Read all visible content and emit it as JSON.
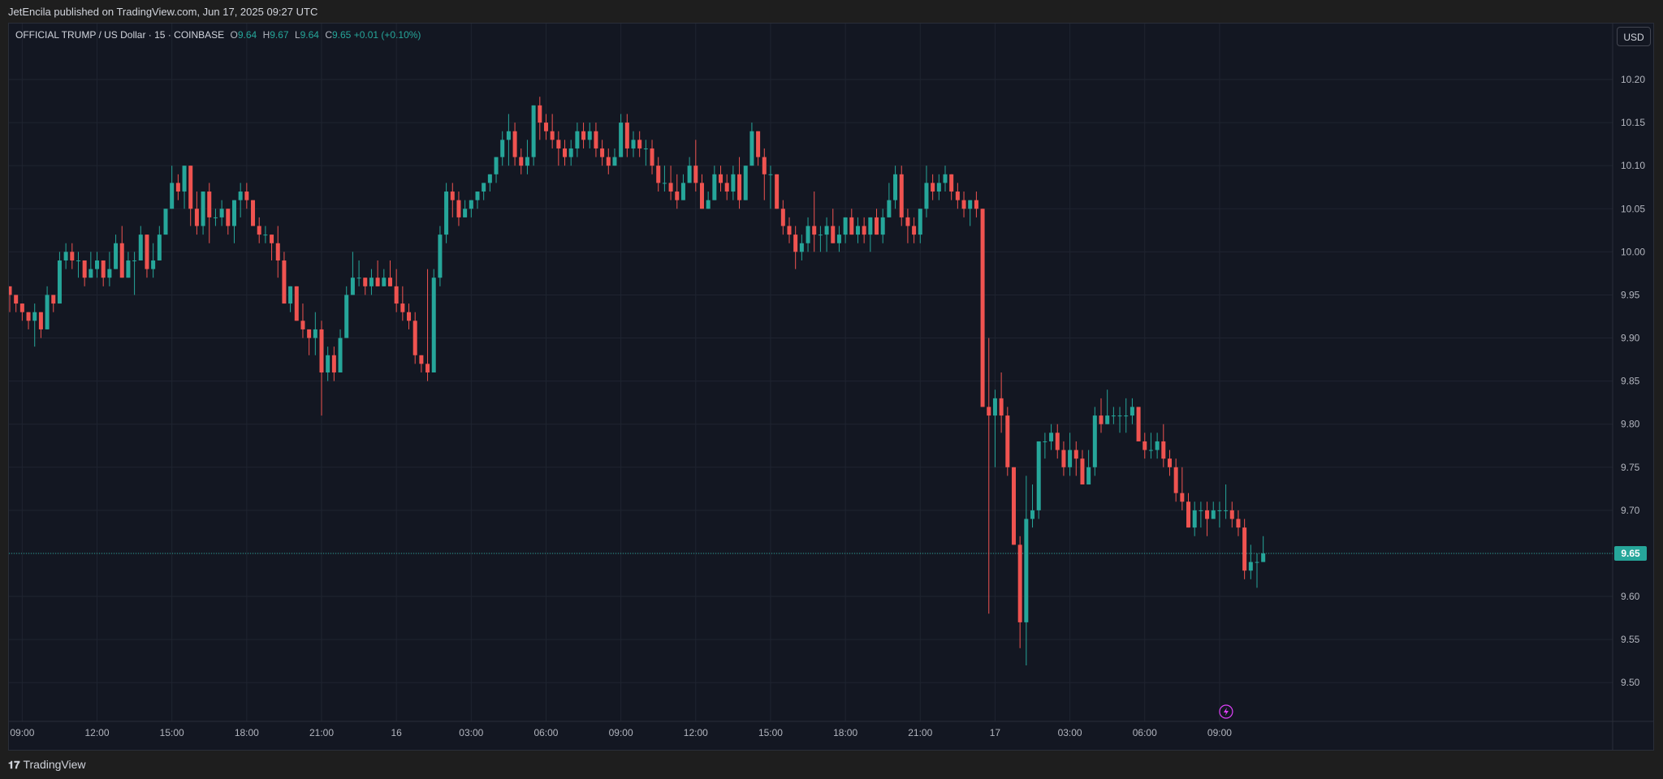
{
  "header": {
    "published_text": "JetEncila published on TradingView.com, Jun 17, 2025 09:27 UTC"
  },
  "legend": {
    "symbol": "OFFICIAL TRUMP / US Dollar · 15 · COINBASE",
    "o_label": "O",
    "o_value": "9.64",
    "h_label": "H",
    "h_value": "9.67",
    "l_label": "L",
    "l_value": "9.64",
    "c_label": "C",
    "c_value": "9.65",
    "change": "+0.01 (+0.10%)"
  },
  "currency_button": "USD",
  "footer": {
    "brand": "TradingView",
    "brand_icon": "tradingview-logo-icon"
  },
  "colors": {
    "up": "#26a69a",
    "down": "#ef5350",
    "background": "#131722",
    "grid": "#1f2430",
    "text": "#b2b5be",
    "last_price_line": "#26a69a",
    "lightning": "#e040fb"
  },
  "chart_data": {
    "type": "candlestick",
    "title": "OFFICIAL TRUMP / US Dollar · 15 · COINBASE",
    "ylim": [
      9.455,
      10.265
    ],
    "y_ticks": [
      9.5,
      9.55,
      9.6,
      9.65,
      9.7,
      9.75,
      9.8,
      9.85,
      9.9,
      9.95,
      10.0,
      10.05,
      10.1,
      10.15,
      10.2
    ],
    "y_tick_labels": [
      "9.50",
      "9.55",
      "9.60",
      "9.65",
      "9.70",
      "9.75",
      "9.80",
      "9.85",
      "9.90",
      "9.95",
      "10.00",
      "10.05",
      "10.10",
      "10.15",
      "10.20"
    ],
    "x_ticks": [
      {
        "index": 2,
        "label": "09:00"
      },
      {
        "index": 14,
        "label": "12:00"
      },
      {
        "index": 26,
        "label": "15:00"
      },
      {
        "index": 38,
        "label": "18:00"
      },
      {
        "index": 50,
        "label": "21:00"
      },
      {
        "index": 62,
        "label": "16"
      },
      {
        "index": 74,
        "label": "03:00"
      },
      {
        "index": 86,
        "label": "06:00"
      },
      {
        "index": 98,
        "label": "09:00"
      },
      {
        "index": 110,
        "label": "12:00"
      },
      {
        "index": 122,
        "label": "15:00"
      },
      {
        "index": 134,
        "label": "18:00"
      },
      {
        "index": 146,
        "label": "21:00"
      },
      {
        "index": 158,
        "label": "17"
      },
      {
        "index": 170,
        "label": "03:00"
      },
      {
        "index": 182,
        "label": "06:00"
      },
      {
        "index": 194,
        "label": "09:00"
      }
    ],
    "grid": true,
    "last_price": 9.65,
    "last_price_label": "9.65",
    "candles": [
      [
        9.96,
        9.96,
        9.93,
        9.95
      ],
      [
        9.95,
        9.95,
        9.93,
        9.94
      ],
      [
        9.94,
        9.94,
        9.92,
        9.93
      ],
      [
        9.93,
        9.93,
        9.91,
        9.92
      ],
      [
        9.92,
        9.94,
        9.89,
        9.93
      ],
      [
        9.93,
        9.93,
        9.9,
        9.91
      ],
      [
        9.91,
        9.96,
        9.91,
        9.95
      ],
      [
        9.95,
        9.95,
        9.93,
        9.94
      ],
      [
        9.94,
        10.0,
        9.94,
        9.99
      ],
      [
        9.99,
        10.01,
        9.98,
        10.0
      ],
      [
        10.0,
        10.01,
        9.98,
        9.99
      ],
      [
        9.99,
        10.0,
        9.97,
        9.99
      ],
      [
        9.99,
        9.99,
        9.96,
        9.97
      ],
      [
        9.97,
        10.0,
        9.97,
        9.98
      ],
      [
        9.98,
        10.0,
        9.97,
        9.99
      ],
      [
        9.99,
        9.99,
        9.96,
        9.97
      ],
      [
        9.97,
        10.0,
        9.96,
        9.98
      ],
      [
        9.98,
        10.02,
        9.98,
        10.01
      ],
      [
        10.01,
        10.03,
        9.97,
        9.97
      ],
      [
        9.97,
        10.0,
        9.97,
        9.99
      ],
      [
        9.99,
        10.0,
        9.95,
        9.99
      ],
      [
        9.99,
        10.03,
        9.99,
        10.02
      ],
      [
        10.02,
        10.02,
        9.97,
        9.98
      ],
      [
        9.98,
        10.01,
        9.97,
        9.99
      ],
      [
        9.99,
        10.03,
        9.99,
        10.02
      ],
      [
        10.02,
        10.05,
        10.02,
        10.05
      ],
      [
        10.05,
        10.1,
        10.05,
        10.08
      ],
      [
        10.08,
        10.09,
        10.06,
        10.07
      ],
      [
        10.07,
        10.1,
        10.05,
        10.1
      ],
      [
        10.1,
        10.1,
        10.03,
        10.05
      ],
      [
        10.05,
        10.07,
        10.02,
        10.03
      ],
      [
        10.03,
        10.07,
        10.02,
        10.07
      ],
      [
        10.07,
        10.08,
        10.01,
        10.04
      ],
      [
        10.04,
        10.05,
        10.03,
        10.04
      ],
      [
        10.04,
        10.06,
        10.03,
        10.05
      ],
      [
        10.05,
        10.05,
        10.02,
        10.03
      ],
      [
        10.03,
        10.06,
        10.01,
        10.06
      ],
      [
        10.06,
        10.08,
        10.04,
        10.07
      ],
      [
        10.07,
        10.08,
        10.05,
        10.06
      ],
      [
        10.06,
        10.06,
        10.03,
        10.03
      ],
      [
        10.03,
        10.04,
        10.01,
        10.02
      ],
      [
        10.02,
        10.03,
        10.01,
        10.02
      ],
      [
        10.02,
        10.02,
        9.99,
        10.01
      ],
      [
        10.01,
        10.03,
        9.97,
        9.99
      ],
      [
        9.99,
        10.0,
        9.94,
        9.94
      ],
      [
        9.94,
        9.96,
        9.93,
        9.96
      ],
      [
        9.96,
        9.96,
        9.92,
        9.92
      ],
      [
        9.92,
        9.94,
        9.9,
        9.91
      ],
      [
        9.91,
        9.91,
        9.88,
        9.9
      ],
      [
        9.9,
        9.93,
        9.88,
        9.91
      ],
      [
        9.91,
        9.92,
        9.81,
        9.86
      ],
      [
        9.86,
        9.89,
        9.85,
        9.88
      ],
      [
        9.88,
        9.89,
        9.85,
        9.86
      ],
      [
        9.86,
        9.91,
        9.86,
        9.9
      ],
      [
        9.9,
        9.96,
        9.9,
        9.95
      ],
      [
        9.95,
        10.0,
        9.95,
        9.97
      ],
      [
        9.97,
        9.99,
        9.96,
        9.97
      ],
      [
        9.97,
        9.97,
        9.95,
        9.96
      ],
      [
        9.96,
        9.98,
        9.95,
        9.97
      ],
      [
        9.97,
        9.99,
        9.96,
        9.96
      ],
      [
        9.96,
        9.98,
        9.96,
        9.97
      ],
      [
        9.97,
        9.99,
        9.96,
        9.96
      ],
      [
        9.96,
        9.98,
        9.93,
        9.94
      ],
      [
        9.94,
        9.96,
        9.92,
        9.93
      ],
      [
        9.93,
        9.94,
        9.91,
        9.92
      ],
      [
        9.92,
        9.93,
        9.87,
        9.88
      ],
      [
        9.88,
        9.88,
        9.86,
        9.87
      ],
      [
        9.87,
        9.98,
        9.85,
        9.86
      ],
      [
        9.86,
        9.98,
        9.86,
        9.97
      ],
      [
        9.97,
        10.03,
        9.96,
        10.02
      ],
      [
        10.02,
        10.08,
        10.01,
        10.07
      ],
      [
        10.07,
        10.08,
        10.04,
        10.06
      ],
      [
        10.06,
        10.07,
        10.03,
        10.04
      ],
      [
        10.04,
        10.06,
        10.04,
        10.05
      ],
      [
        10.05,
        10.06,
        10.04,
        10.06
      ],
      [
        10.06,
        10.07,
        10.05,
        10.07
      ],
      [
        10.07,
        10.08,
        10.06,
        10.08
      ],
      [
        10.08,
        10.09,
        10.07,
        10.09
      ],
      [
        10.09,
        10.11,
        10.08,
        10.11
      ],
      [
        10.11,
        10.14,
        10.1,
        10.13
      ],
      [
        10.13,
        10.16,
        10.1,
        10.14
      ],
      [
        10.14,
        10.15,
        10.1,
        10.11
      ],
      [
        10.11,
        10.12,
        10.09,
        10.1
      ],
      [
        10.1,
        10.13,
        10.09,
        10.11
      ],
      [
        10.11,
        10.17,
        10.1,
        10.17
      ],
      [
        10.17,
        10.18,
        10.13,
        10.15
      ],
      [
        10.15,
        10.16,
        10.13,
        10.14
      ],
      [
        10.14,
        10.16,
        10.12,
        10.13
      ],
      [
        10.13,
        10.14,
        10.1,
        10.12
      ],
      [
        10.12,
        10.13,
        10.1,
        10.11
      ],
      [
        10.11,
        10.13,
        10.1,
        10.12
      ],
      [
        10.12,
        10.15,
        10.11,
        10.14
      ],
      [
        10.14,
        10.15,
        10.12,
        10.13
      ],
      [
        10.13,
        10.15,
        10.12,
        10.14
      ],
      [
        10.14,
        10.15,
        10.11,
        10.12
      ],
      [
        10.12,
        10.13,
        10.1,
        10.11
      ],
      [
        10.11,
        10.12,
        10.09,
        10.1
      ],
      [
        10.1,
        10.12,
        10.1,
        10.11
      ],
      [
        10.11,
        10.16,
        10.11,
        10.15
      ],
      [
        10.15,
        10.16,
        10.11,
        10.12
      ],
      [
        10.12,
        10.14,
        10.11,
        10.13
      ],
      [
        10.13,
        10.14,
        10.11,
        10.12
      ],
      [
        10.12,
        10.13,
        10.1,
        10.12
      ],
      [
        10.12,
        10.13,
        10.09,
        10.1
      ],
      [
        10.1,
        10.11,
        10.07,
        10.08
      ],
      [
        10.08,
        10.1,
        10.07,
        10.08
      ],
      [
        10.08,
        10.1,
        10.06,
        10.07
      ],
      [
        10.07,
        10.09,
        10.05,
        10.06
      ],
      [
        10.06,
        10.09,
        10.06,
        10.08
      ],
      [
        10.08,
        10.11,
        10.08,
        10.1
      ],
      [
        10.1,
        10.13,
        10.07,
        10.08
      ],
      [
        10.08,
        10.09,
        10.05,
        10.05
      ],
      [
        10.05,
        10.07,
        10.05,
        10.06
      ],
      [
        10.06,
        10.1,
        10.06,
        10.09
      ],
      [
        10.09,
        10.1,
        10.07,
        10.08
      ],
      [
        10.08,
        10.09,
        10.06,
        10.07
      ],
      [
        10.07,
        10.1,
        10.06,
        10.09
      ],
      [
        10.09,
        10.11,
        10.05,
        10.06
      ],
      [
        10.06,
        10.1,
        10.06,
        10.1
      ],
      [
        10.1,
        10.15,
        10.1,
        10.14
      ],
      [
        10.14,
        10.14,
        10.1,
        10.11
      ],
      [
        10.11,
        10.12,
        10.06,
        10.09
      ],
      [
        10.09,
        10.1,
        10.05,
        10.09
      ],
      [
        10.09,
        10.09,
        10.05,
        10.05
      ],
      [
        10.05,
        10.06,
        10.02,
        10.03
      ],
      [
        10.03,
        10.04,
        10.01,
        10.02
      ],
      [
        10.02,
        10.03,
        9.98,
        10.0
      ],
      [
        10.0,
        10.02,
        9.99,
        10.01
      ],
      [
        10.01,
        10.04,
        10.0,
        10.03
      ],
      [
        10.03,
        10.07,
        10.0,
        10.02
      ],
      [
        10.02,
        10.03,
        10.0,
        10.02
      ],
      [
        10.02,
        10.04,
        10.0,
        10.03
      ],
      [
        10.03,
        10.05,
        10.01,
        10.01
      ],
      [
        10.01,
        10.03,
        10.0,
        10.02
      ],
      [
        10.02,
        10.04,
        10.01,
        10.04
      ],
      [
        10.04,
        10.05,
        10.02,
        10.02
      ],
      [
        10.02,
        10.04,
        10.01,
        10.03
      ],
      [
        10.03,
        10.04,
        10.01,
        10.02
      ],
      [
        10.02,
        10.04,
        10.0,
        10.04
      ],
      [
        10.04,
        10.05,
        10.02,
        10.02
      ],
      [
        10.02,
        10.05,
        10.01,
        10.04
      ],
      [
        10.04,
        10.08,
        10.04,
        10.06
      ],
      [
        10.06,
        10.1,
        10.05,
        10.09
      ],
      [
        10.09,
        10.1,
        10.03,
        10.04
      ],
      [
        10.04,
        10.05,
        10.01,
        10.03
      ],
      [
        10.03,
        10.04,
        10.01,
        10.02
      ],
      [
        10.02,
        10.05,
        10.01,
        10.05
      ],
      [
        10.05,
        10.1,
        10.04,
        10.08
      ],
      [
        10.08,
        10.09,
        10.06,
        10.07
      ],
      [
        10.07,
        10.09,
        10.06,
        10.08
      ],
      [
        10.08,
        10.1,
        10.07,
        10.09
      ],
      [
        10.09,
        10.09,
        10.06,
        10.07
      ],
      [
        10.07,
        10.08,
        10.05,
        10.06
      ],
      [
        10.06,
        10.07,
        10.04,
        10.05
      ],
      [
        10.05,
        10.06,
        10.03,
        10.06
      ],
      [
        10.06,
        10.07,
        10.04,
        10.05
      ],
      [
        10.05,
        10.05,
        9.82,
        9.82
      ],
      [
        9.82,
        9.9,
        9.58,
        9.81
      ],
      [
        9.81,
        9.84,
        9.75,
        9.83
      ],
      [
        9.83,
        9.86,
        9.79,
        9.81
      ],
      [
        9.81,
        9.82,
        9.74,
        9.75
      ],
      [
        9.75,
        9.75,
        9.66,
        9.66
      ],
      [
        9.66,
        9.67,
        9.54,
        9.57
      ],
      [
        9.57,
        9.74,
        9.52,
        9.69
      ],
      [
        9.69,
        9.73,
        9.68,
        9.7
      ],
      [
        9.7,
        9.78,
        9.69,
        9.78
      ],
      [
        9.78,
        9.79,
        9.76,
        9.78
      ],
      [
        9.78,
        9.8,
        9.77,
        9.79
      ],
      [
        9.79,
        9.8,
        9.76,
        9.77
      ],
      [
        9.77,
        9.78,
        9.74,
        9.75
      ],
      [
        9.75,
        9.79,
        9.74,
        9.77
      ],
      [
        9.77,
        9.78,
        9.74,
        9.76
      ],
      [
        9.76,
        9.77,
        9.73,
        9.73
      ],
      [
        9.73,
        9.77,
        9.73,
        9.75
      ],
      [
        9.75,
        9.82,
        9.74,
        9.81
      ],
      [
        9.81,
        9.83,
        9.79,
        9.8
      ],
      [
        9.8,
        9.84,
        9.8,
        9.81
      ],
      [
        9.81,
        9.82,
        9.8,
        9.81
      ],
      [
        9.81,
        9.82,
        9.79,
        9.81
      ],
      [
        9.81,
        9.83,
        9.79,
        9.81
      ],
      [
        9.81,
        9.83,
        9.8,
        9.82
      ],
      [
        9.82,
        9.82,
        9.78,
        9.78
      ],
      [
        9.78,
        9.79,
        9.76,
        9.77
      ],
      [
        9.77,
        9.79,
        9.76,
        9.77
      ],
      [
        9.77,
        9.79,
        9.76,
        9.78
      ],
      [
        9.78,
        9.8,
        9.75,
        9.76
      ],
      [
        9.76,
        9.77,
        9.74,
        9.75
      ],
      [
        9.75,
        9.76,
        9.71,
        9.72
      ],
      [
        9.72,
        9.75,
        9.7,
        9.71
      ],
      [
        9.71,
        9.72,
        9.68,
        9.68
      ],
      [
        9.68,
        9.71,
        9.67,
        9.7
      ],
      [
        9.7,
        9.71,
        9.68,
        9.7
      ],
      [
        9.7,
        9.71,
        9.67,
        9.69
      ],
      [
        9.69,
        9.71,
        9.69,
        9.7
      ],
      [
        9.7,
        9.71,
        9.68,
        9.7
      ],
      [
        9.7,
        9.73,
        9.69,
        9.7
      ],
      [
        9.7,
        9.71,
        9.68,
        9.69
      ],
      [
        9.69,
        9.7,
        9.67,
        9.68
      ],
      [
        9.68,
        9.69,
        9.62,
        9.63
      ],
      [
        9.63,
        9.66,
        9.62,
        9.64
      ],
      [
        9.64,
        9.65,
        9.61,
        9.64
      ],
      [
        9.64,
        9.67,
        9.64,
        9.65
      ]
    ]
  }
}
